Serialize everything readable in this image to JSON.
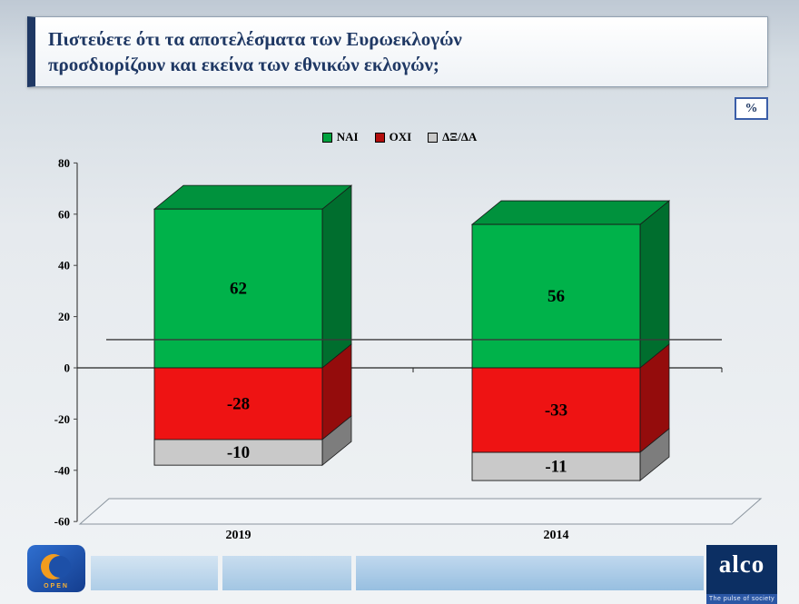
{
  "title_line1": "Πιστεύετε ότι τα αποτελέσματα των Ευρωεκλογών",
  "title_line2": "προσδιορίζουν και εκείνα των εθνικών εκλογών;",
  "percent_badge": "%",
  "chart_data": {
    "type": "bar",
    "variant": "3d-stacked-column",
    "categories": [
      "2019",
      "2014"
    ],
    "series": [
      {
        "name": "ΝΑΙ",
        "color": "#00b24a",
        "values": [
          62,
          56
        ]
      },
      {
        "name": "ΟΧΙ",
        "color": "#ee1313",
        "values": [
          -28,
          -33
        ]
      },
      {
        "name": "ΔΞ/ΔΑ",
        "color": "#c9c9c9",
        "values": [
          -10,
          -11
        ]
      }
    ],
    "ylim": [
      -60,
      80
    ],
    "yticks": [
      80,
      60,
      40,
      20,
      0,
      -20,
      -40,
      -60
    ],
    "reference_line_y": 11,
    "grid": false,
    "legend_position": "top",
    "legend": [
      {
        "label": "ΝΑΙ",
        "color": "#00a23f"
      },
      {
        "label": "ΟΧΙ",
        "color": "#b30d0d"
      },
      {
        "label": "ΔΞ/ΔΑ",
        "color": "#c9c9c9"
      }
    ]
  },
  "footer": {
    "open_logo": "OPEN",
    "alco_logo": "alco",
    "alco_tagline": "The pulse of society"
  }
}
